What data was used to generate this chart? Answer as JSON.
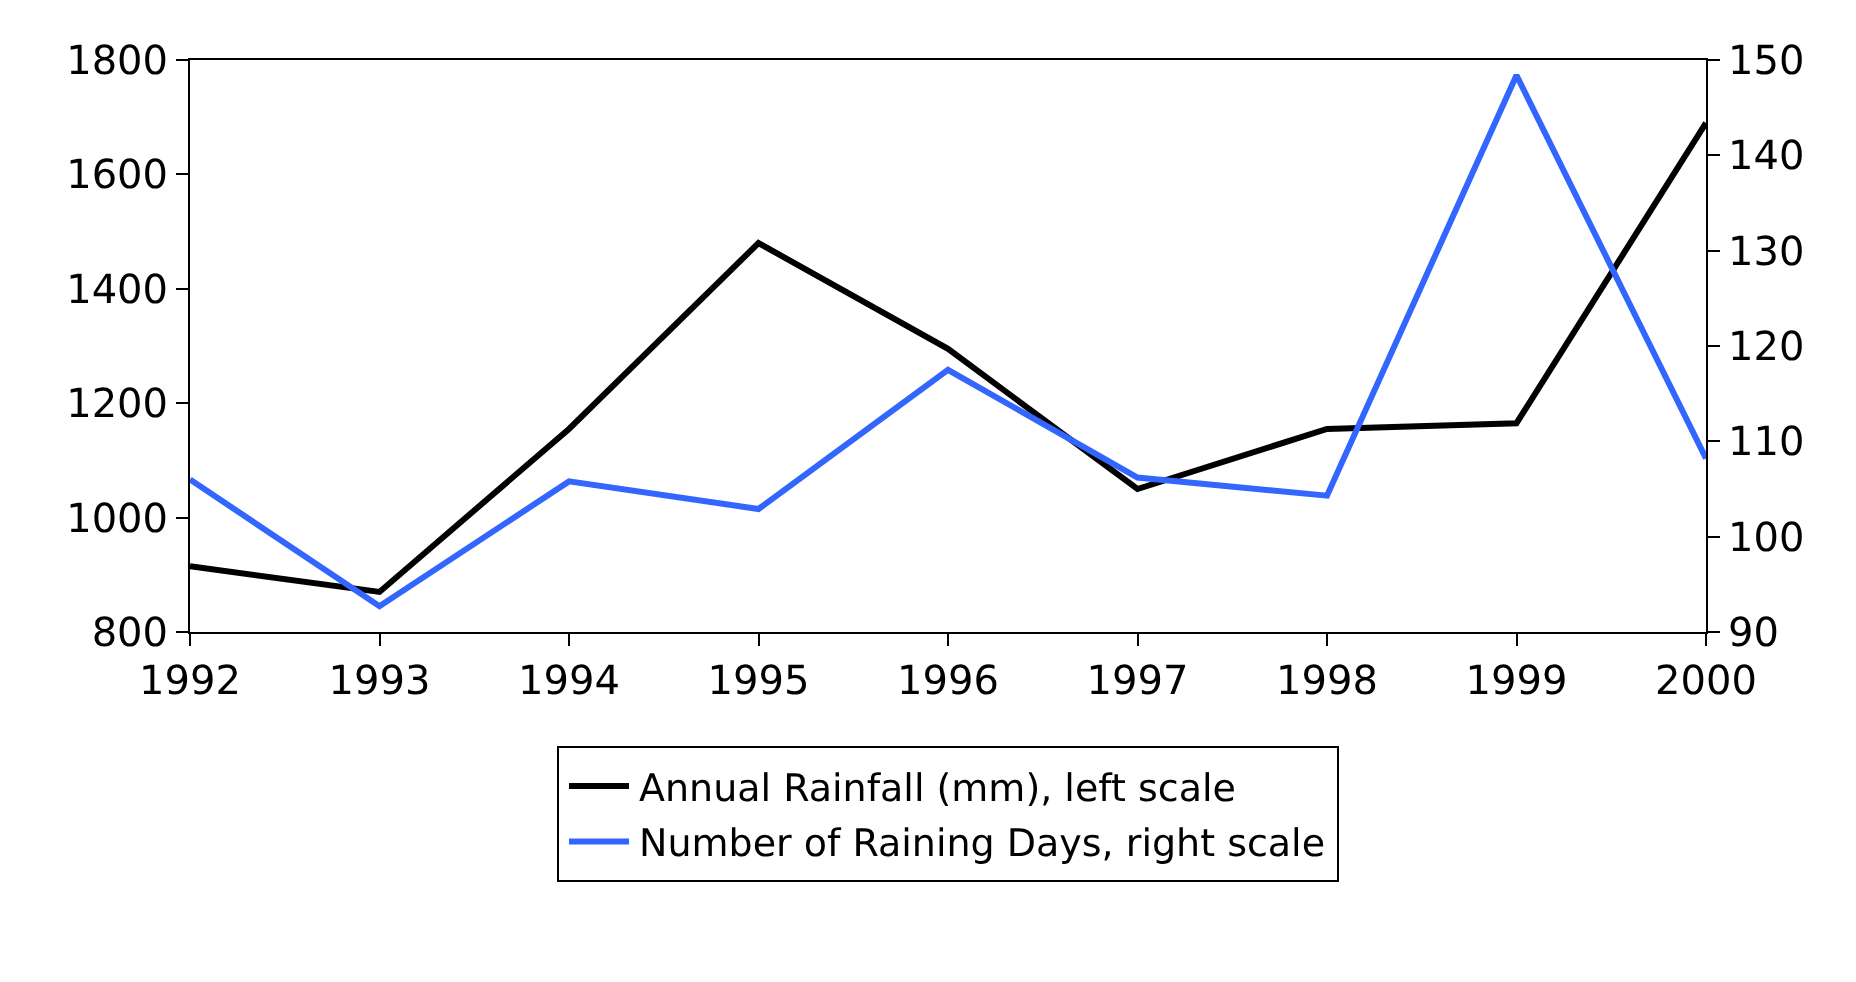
{
  "chart_data": {
    "type": "line",
    "x": [
      1992,
      1993,
      1994,
      1995,
      1996,
      1997,
      1998,
      1999,
      2000
    ],
    "xlim": [
      1992,
      2000
    ],
    "xticks": [
      1992,
      1993,
      1994,
      1995,
      1996,
      1997,
      1998,
      1999,
      2000
    ],
    "ylim": [
      800,
      1800
    ],
    "yticks": [
      800,
      1000,
      1200,
      1400,
      1600,
      1800
    ],
    "y2lim": [
      90,
      150
    ],
    "y2ticks": [
      90,
      100,
      110,
      120,
      130,
      140,
      150
    ],
    "grid": false,
    "legend": "bottom",
    "marker": "none",
    "line_style": "solid",
    "series": [
      {
        "name": "Annual Rainfall (mm), left scale",
        "color": "#000000",
        "values": [
          915,
          870,
          1155,
          1480,
          1295,
          1050,
          1155,
          1165,
          1690
        ]
      },
      {
        "name": "Number of Raining Days, right scale",
        "color": "#3366ff",
        "axis": "y2",
        "values": [
          106,
          92.7,
          105.8,
          102.9,
          117.5,
          106.2,
          104.3,
          148.4,
          108.2
        ]
      }
    ]
  }
}
